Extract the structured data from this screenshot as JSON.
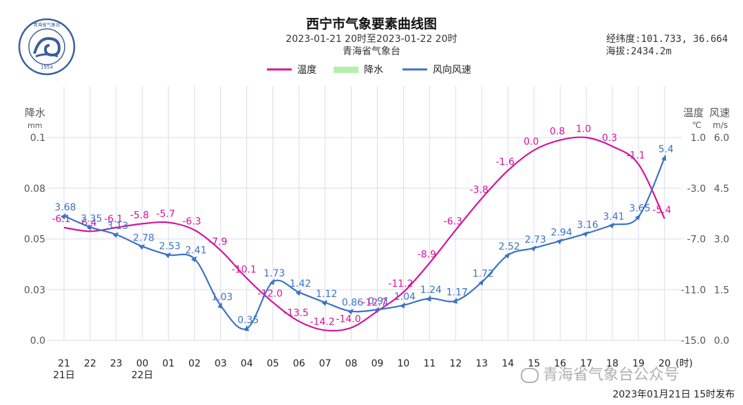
{
  "header": {
    "title": "西宁市气象要素曲线图",
    "subtitle": "2023-01-21 20时至2023-01-22 20时",
    "organization": "青海省气象台",
    "coordinates": "经纬度:101.733, 36.664",
    "altitude": "海拔:2434.2m"
  },
  "logo": {
    "year": "1954",
    "ring_text": "青海省气象台"
  },
  "footer": {
    "released": "2023年01月21日 15时发布",
    "watermark": "青海省气象台公众号"
  },
  "colors": {
    "temperature": "#d4149a",
    "precipitation": "#b3f0a8",
    "wind": "#3b72c4",
    "grid": "#d9dbee",
    "axis_text": "#555555"
  },
  "chart_data": {
    "type": "line",
    "legend": {
      "placement": "top-center",
      "items": [
        {
          "key": "temperature",
          "label": "温度"
        },
        {
          "key": "precipitation",
          "label": "降水"
        },
        {
          "key": "wind",
          "label": "风向风速"
        }
      ]
    },
    "x": {
      "hours": [
        "21",
        "22",
        "23",
        "00",
        "01",
        "02",
        "03",
        "04",
        "05",
        "06",
        "07",
        "08",
        "09",
        "10",
        "11",
        "12",
        "13",
        "14",
        "15",
        "16",
        "17",
        "18",
        "19",
        "20"
      ],
      "date_labels": [
        "21日",
        "",
        "",
        "22日",
        "",
        "",
        "",
        "",
        "",
        "",
        "",
        "",
        "",
        "",
        "",
        "",
        "",
        "",
        "",
        "",
        "",
        "",
        "",
        ""
      ],
      "unit_label": "(时)"
    },
    "axes": {
      "precip": {
        "title": "降水",
        "unit": "mm",
        "ticks": [
          "0.1",
          "0.08",
          "0.05",
          "0.03",
          "0.0"
        ],
        "range": [
          0,
          0.1
        ]
      },
      "temperature": {
        "title": "温度",
        "unit": "℃",
        "ticks": [
          "1.0",
          "-3.0",
          "-7.0",
          "-11.0",
          "-15.0"
        ],
        "range": [
          -15,
          1
        ]
      },
      "wind": {
        "title": "风速",
        "unit": "m/s",
        "ticks": [
          "6.0",
          "4.5",
          "3.0",
          "1.5",
          "0.0"
        ],
        "range": [
          0,
          6
        ]
      }
    },
    "series": [
      {
        "name": "温度",
        "key": "temperature",
        "values": [
          -6.1,
          -6.4,
          -6.1,
          -5.8,
          -5.7,
          -6.3,
          -7.9,
          -10.1,
          -12.0,
          -13.5,
          -14.2,
          -14.0,
          -12.7,
          -11.2,
          -8.9,
          -6.3,
          -3.8,
          -1.6,
          0.0,
          0.8,
          1.0,
          0.3,
          -1.1,
          -5.4
        ],
        "labels": [
          "-6.1",
          "-6.4",
          "-6.1",
          "-5.8",
          "-5.7",
          "-6.3",
          "-7.9",
          "-10.1",
          "-12.0",
          "-13.5",
          "-14.2",
          "-14.0",
          "-12.7",
          "-11.2",
          "-8.9",
          "-6.3",
          "-3.8",
          "-1.6",
          "0.0",
          "0.8",
          "1.0",
          "0.3",
          "-1.1",
          "-5.4"
        ]
      },
      {
        "name": "降水",
        "key": "precipitation",
        "values": [
          0,
          0,
          0,
          0,
          0,
          0,
          0,
          0,
          0,
          0,
          0,
          0,
          0,
          0,
          0,
          0,
          0,
          0,
          0,
          0,
          0,
          0,
          0,
          0
        ]
      },
      {
        "name": "风向风速",
        "key": "wind",
        "values": [
          3.68,
          3.35,
          3.13,
          2.78,
          2.53,
          2.41,
          1.03,
          0.35,
          1.73,
          1.42,
          1.12,
          0.86,
          0.91,
          1.04,
          1.24,
          1.17,
          1.72,
          2.52,
          2.73,
          2.94,
          3.16,
          3.41,
          3.65,
          5.4
        ],
        "labels": [
          "3.68",
          "3.35",
          "3.13",
          "2.78",
          "2.53",
          "2.41",
          "1.03",
          "0.35",
          "1.73",
          "1.42",
          "1.12",
          "0.86",
          "0.91",
          "1.04",
          "1.24",
          "1.17",
          "1.72",
          "2.52",
          "2.73",
          "2.94",
          "3.16",
          "3.41",
          "3.65",
          "5.4"
        ],
        "directions": [
          35,
          40,
          45,
          50,
          45,
          40,
          20,
          0,
          25,
          35,
          40,
          45,
          40,
          30,
          20,
          15,
          30,
          40,
          45,
          50,
          50,
          45,
          40,
          20
        ]
      }
    ]
  }
}
